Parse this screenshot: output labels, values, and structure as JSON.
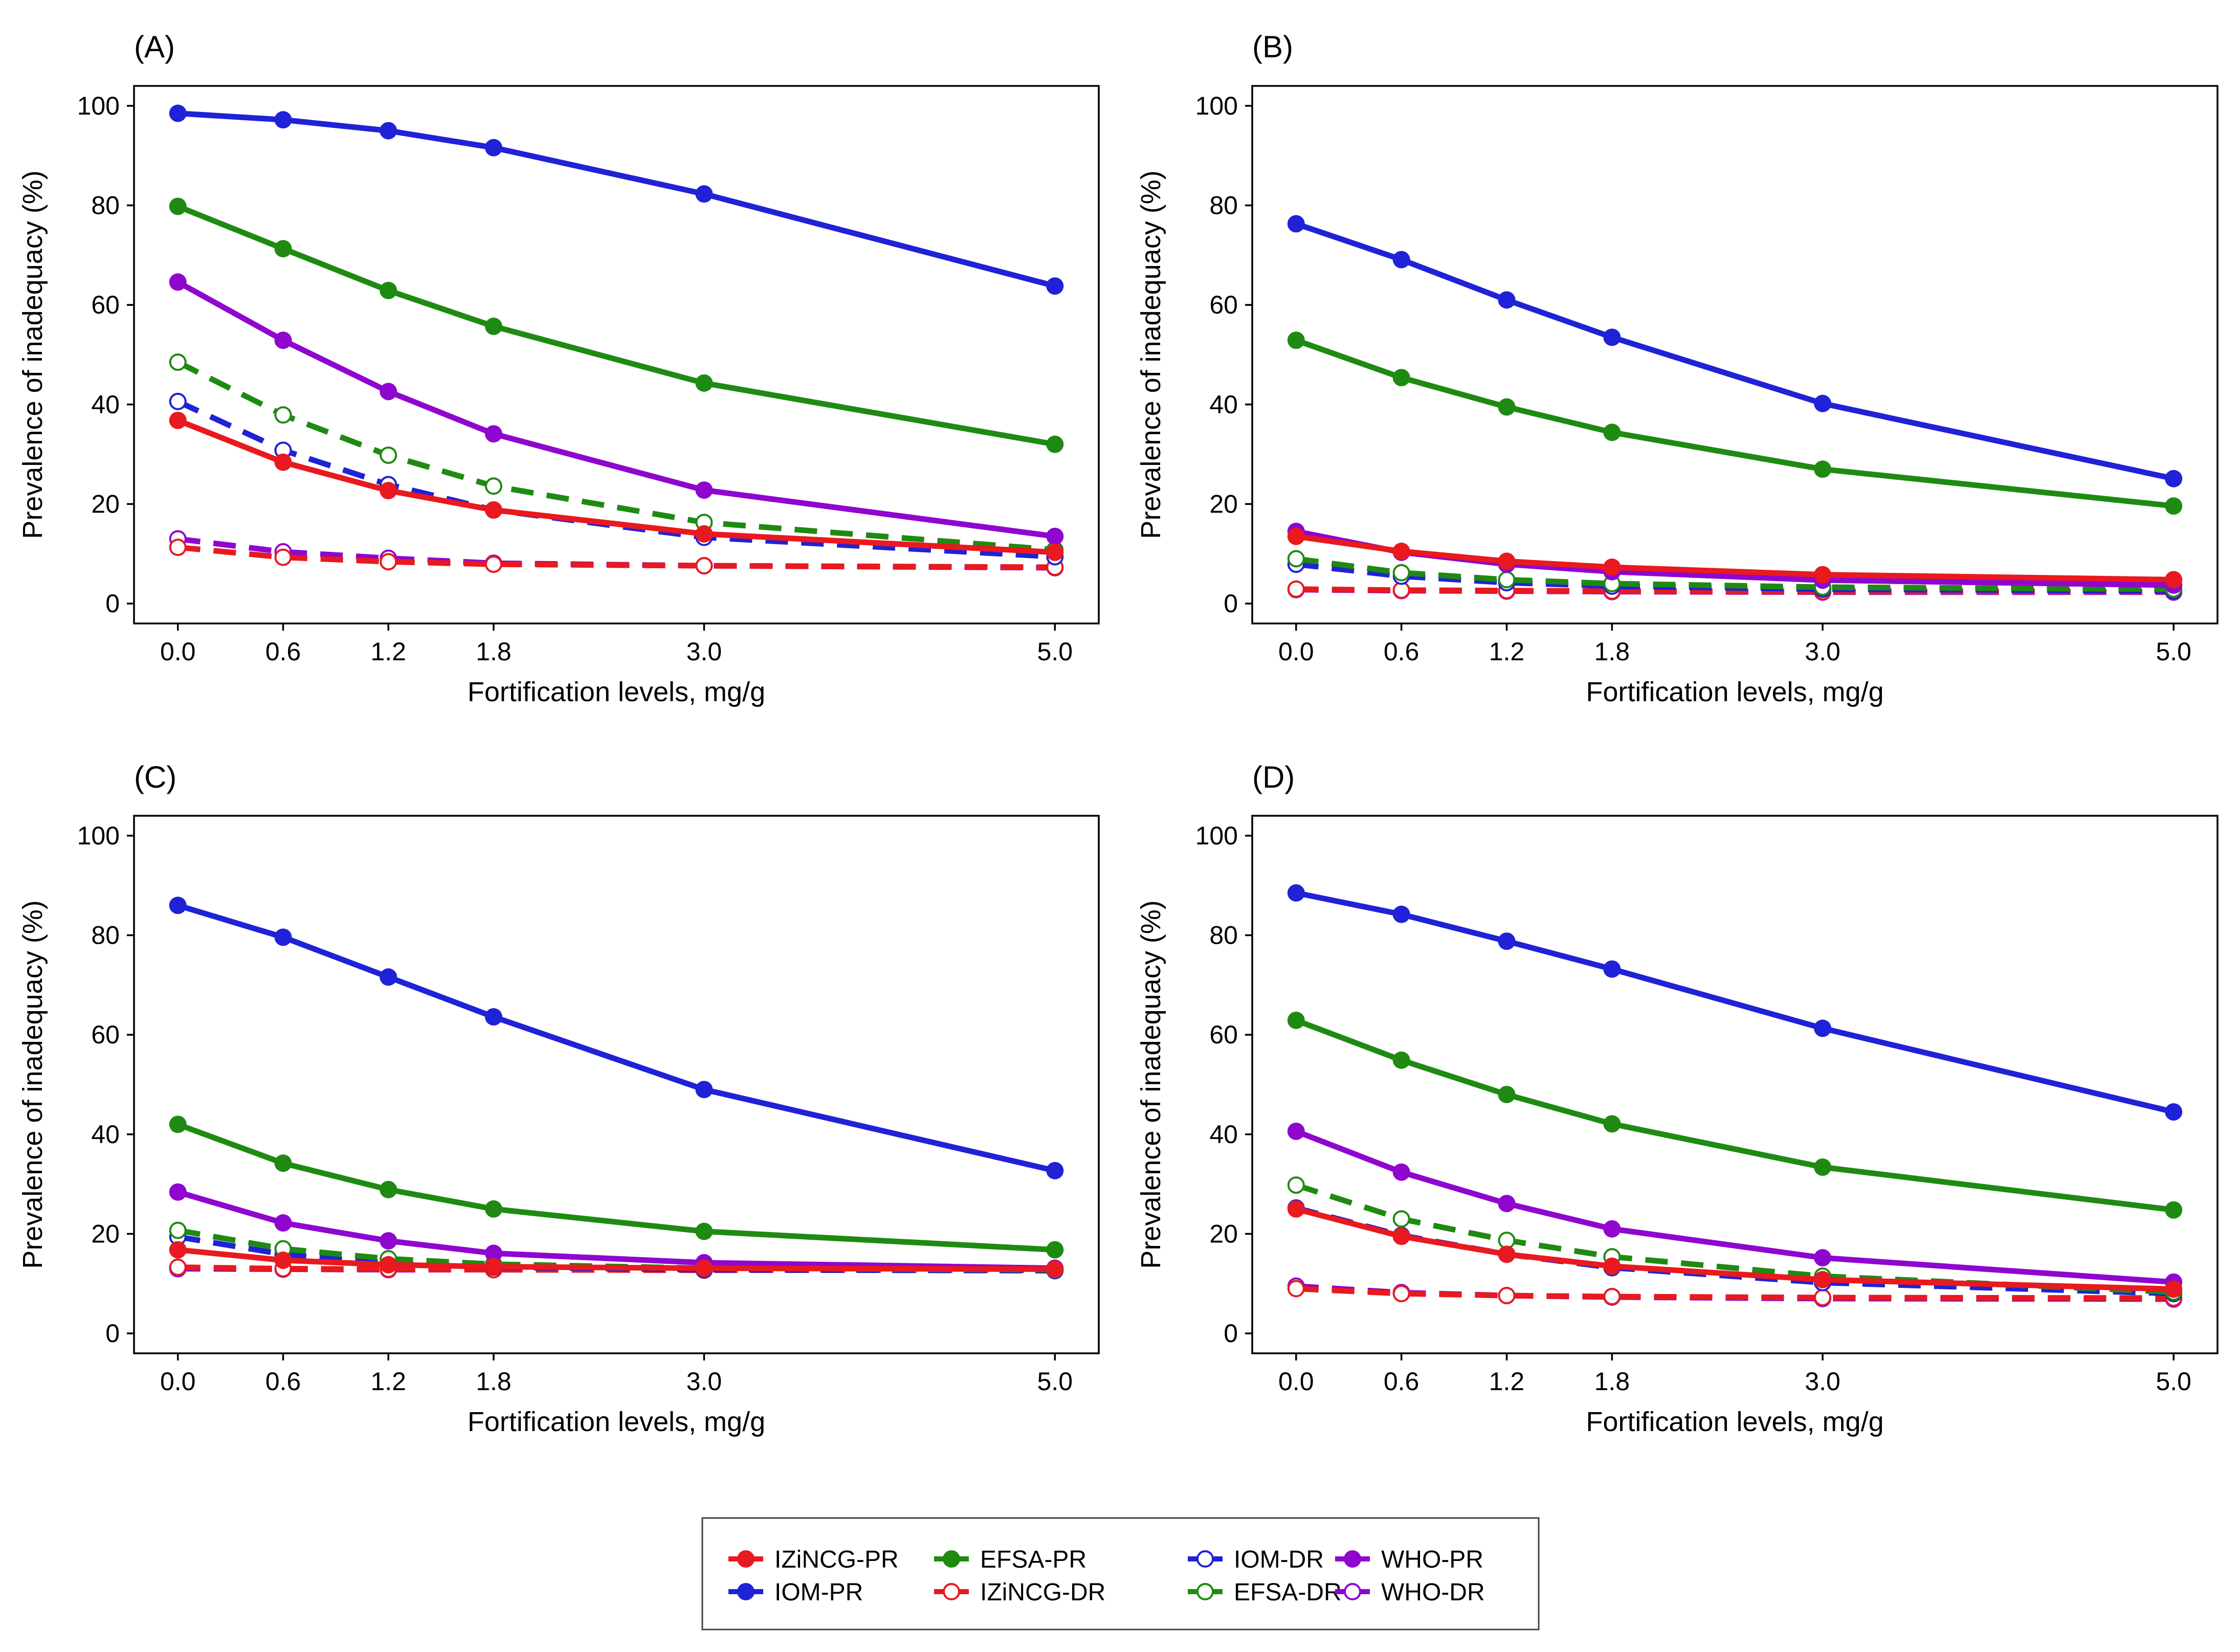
{
  "legend": {
    "columns": [
      [
        "IZiNCG-PR",
        "IOM-PR"
      ],
      [
        "EFSA-PR",
        "IZiNCG-DR"
      ],
      [
        "IOM-DR",
        "EFSA-DR"
      ],
      [
        "WHO-PR",
        "WHO-DR"
      ]
    ]
  },
  "colors": {
    "IZiNCG": "#e8191f",
    "IOM": "#1f22d6",
    "EFSA": "#1f8a12",
    "WHO": "#8f06cf",
    "frame": "#000000",
    "background": "#ffffff"
  },
  "chart_data": [
    {
      "type": "line",
      "title": "(A)",
      "xlabel": "Fortification levels, mg/g",
      "ylabel": "Prevalence of inadequacy (%)",
      "x": [
        0.0,
        0.6,
        1.2,
        1.8,
        3.0,
        5.0
      ],
      "x_tick_labels": [
        "0.0",
        "0.6",
        "1.2",
        "1.8",
        "3.0",
        "5.0"
      ],
      "y_ticks": [
        0,
        20,
        40,
        60,
        80,
        100
      ],
      "y_tick_labels": [
        "0",
        "20",
        "40",
        "60",
        "80",
        "100"
      ],
      "xlim": [
        -0.25,
        5.25
      ],
      "ylim": [
        -4,
        104
      ],
      "series": [
        {
          "name": "IOM-PR",
          "group": "IOM",
          "style": "PR",
          "values": [
            98.5,
            97.2,
            95.0,
            91.6,
            82.3,
            63.8
          ]
        },
        {
          "name": "EFSA-PR",
          "group": "EFSA",
          "style": "PR",
          "values": [
            79.8,
            71.3,
            62.9,
            55.7,
            44.3,
            32.0
          ]
        },
        {
          "name": "WHO-PR",
          "group": "WHO",
          "style": "PR",
          "values": [
            64.6,
            52.9,
            42.6,
            34.1,
            22.8,
            13.5
          ]
        },
        {
          "name": "EFSA-DR",
          "group": "EFSA",
          "style": "DR",
          "values": [
            48.5,
            37.9,
            29.8,
            23.6,
            16.3,
            10.8
          ]
        },
        {
          "name": "IOM-DR",
          "group": "IOM",
          "style": "DR",
          "values": [
            40.6,
            30.8,
            23.9,
            18.8,
            13.3,
            9.4
          ]
        },
        {
          "name": "IZiNCG-PR",
          "group": "IZiNCG",
          "style": "PR",
          "values": [
            36.8,
            28.4,
            22.7,
            18.8,
            14.0,
            10.3
          ]
        },
        {
          "name": "WHO-DR",
          "group": "WHO",
          "style": "DR",
          "values": [
            13.0,
            10.4,
            9.1,
            8.1,
            7.6,
            7.2
          ]
        },
        {
          "name": "IZiNCG-DR",
          "group": "IZiNCG",
          "style": "DR",
          "values": [
            11.3,
            9.3,
            8.4,
            7.9,
            7.6,
            7.3
          ]
        }
      ]
    },
    {
      "type": "line",
      "title": "(B)",
      "xlabel": "Fortification levels, mg/g",
      "ylabel": "Prevalence of inadequacy (%)",
      "x": [
        0.0,
        0.6,
        1.2,
        1.8,
        3.0,
        5.0
      ],
      "x_tick_labels": [
        "0.0",
        "0.6",
        "1.2",
        "1.8",
        "3.0",
        "5.0"
      ],
      "y_ticks": [
        0,
        20,
        40,
        60,
        80,
        100
      ],
      "y_tick_labels": [
        "0",
        "20",
        "40",
        "60",
        "80",
        "100"
      ],
      "xlim": [
        -0.25,
        5.25
      ],
      "ylim": [
        -4,
        104
      ],
      "series": [
        {
          "name": "IOM-PR",
          "group": "IOM",
          "style": "PR",
          "values": [
            76.3,
            69.1,
            61.0,
            53.5,
            40.2,
            25.1
          ]
        },
        {
          "name": "EFSA-PR",
          "group": "EFSA",
          "style": "PR",
          "values": [
            52.9,
            45.4,
            39.5,
            34.4,
            27.0,
            19.6
          ]
        },
        {
          "name": "WHO-PR",
          "group": "WHO",
          "style": "PR",
          "values": [
            14.5,
            10.3,
            7.9,
            6.4,
            4.7,
            3.7
          ]
        },
        {
          "name": "IZiNCG-PR",
          "group": "IZiNCG",
          "style": "PR",
          "values": [
            13.5,
            10.5,
            8.5,
            7.3,
            5.8,
            4.8
          ]
        },
        {
          "name": "EFSA-DR",
          "group": "EFSA",
          "style": "DR",
          "values": [
            9.0,
            6.2,
            4.8,
            4.0,
            3.3,
            2.9
          ]
        },
        {
          "name": "IOM-DR",
          "group": "IOM",
          "style": "DR",
          "values": [
            7.9,
            5.5,
            4.2,
            3.5,
            2.9,
            2.5
          ]
        },
        {
          "name": "WHO-DR",
          "group": "WHO",
          "style": "DR",
          "values": [
            2.8,
            2.6,
            2.5,
            2.4,
            2.3,
            2.3
          ]
        },
        {
          "name": "IZiNCG-DR",
          "group": "IZiNCG",
          "style": "DR",
          "values": [
            2.9,
            2.7,
            2.6,
            2.5,
            2.4,
            2.4
          ]
        }
      ]
    },
    {
      "type": "line",
      "title": "(C)",
      "xlabel": "Fortification levels, mg/g",
      "ylabel": "Prevalence of inadequacy (%)",
      "x": [
        0.0,
        0.6,
        1.2,
        1.8,
        3.0,
        5.0
      ],
      "x_tick_labels": [
        "0.0",
        "0.6",
        "1.2",
        "1.8",
        "3.0",
        "5.0"
      ],
      "y_ticks": [
        0,
        20,
        40,
        60,
        80,
        100
      ],
      "y_tick_labels": [
        "0",
        "20",
        "40",
        "60",
        "80",
        "100"
      ],
      "xlim": [
        -0.25,
        5.25
      ],
      "ylim": [
        -4,
        104
      ],
      "series": [
        {
          "name": "IOM-PR",
          "group": "IOM",
          "style": "PR",
          "values": [
            86.0,
            79.6,
            71.6,
            63.6,
            49.0,
            32.7
          ]
        },
        {
          "name": "EFSA-PR",
          "group": "EFSA",
          "style": "PR",
          "values": [
            42.0,
            34.2,
            28.9,
            25.0,
            20.5,
            16.8
          ]
        },
        {
          "name": "WHO-PR",
          "group": "WHO",
          "style": "PR",
          "values": [
            28.4,
            22.2,
            18.6,
            16.1,
            14.2,
            13.1
          ]
        },
        {
          "name": "EFSA-DR",
          "group": "EFSA",
          "style": "DR",
          "values": [
            20.7,
            17.0,
            15.0,
            13.9,
            13.1,
            12.8
          ]
        },
        {
          "name": "IOM-DR",
          "group": "IOM",
          "style": "DR",
          "values": [
            19.4,
            15.9,
            14.1,
            13.3,
            12.8,
            12.6
          ]
        },
        {
          "name": "IZiNCG-PR",
          "group": "IZiNCG",
          "style": "PR",
          "values": [
            16.8,
            14.7,
            13.8,
            13.4,
            13.1,
            12.9
          ]
        },
        {
          "name": "WHO-DR",
          "group": "WHO",
          "style": "DR",
          "values": [
            13.0,
            12.9,
            12.8,
            12.8,
            12.7,
            12.7
          ]
        },
        {
          "name": "IZiNCG-DR",
          "group": "IZiNCG",
          "style": "DR",
          "values": [
            13.3,
            13.0,
            12.9,
            12.8,
            12.7,
            12.7
          ]
        }
      ]
    },
    {
      "type": "line",
      "title": "(D)",
      "xlabel": "Fortification levels, mg/g",
      "ylabel": "Prevalence of inadequacy (%)",
      "x": [
        0.0,
        0.6,
        1.2,
        1.8,
        3.0,
        5.0
      ],
      "x_tick_labels": [
        "0.0",
        "0.6",
        "1.2",
        "1.8",
        "3.0",
        "5.0"
      ],
      "y_ticks": [
        0,
        20,
        40,
        60,
        80,
        100
      ],
      "y_tick_labels": [
        "0",
        "20",
        "40",
        "60",
        "80",
        "100"
      ],
      "xlim": [
        -0.25,
        5.25
      ],
      "ylim": [
        -4,
        104
      ],
      "series": [
        {
          "name": "IOM-PR",
          "group": "IOM",
          "style": "PR",
          "values": [
            88.5,
            84.2,
            78.8,
            73.2,
            61.3,
            44.5
          ]
        },
        {
          "name": "EFSA-PR",
          "group": "EFSA",
          "style": "PR",
          "values": [
            62.9,
            54.9,
            48.0,
            42.1,
            33.4,
            24.8
          ]
        },
        {
          "name": "WHO-PR",
          "group": "WHO",
          "style": "PR",
          "values": [
            40.6,
            32.4,
            26.1,
            21.0,
            15.2,
            10.3
          ]
        },
        {
          "name": "EFSA-DR",
          "group": "EFSA",
          "style": "DR",
          "values": [
            29.8,
            23.0,
            18.7,
            15.4,
            11.5,
            8.3
          ]
        },
        {
          "name": "IOM-DR",
          "group": "IOM",
          "style": "DR",
          "values": [
            25.2,
            19.7,
            15.9,
            13.2,
            10.2,
            8.0
          ]
        },
        {
          "name": "IZiNCG-PR",
          "group": "IZiNCG",
          "style": "PR",
          "values": [
            25.0,
            19.5,
            15.9,
            13.5,
            10.8,
            8.9
          ]
        },
        {
          "name": "WHO-DR",
          "group": "WHO",
          "style": "DR",
          "values": [
            9.5,
            8.2,
            7.6,
            7.3,
            7.0,
            6.9
          ]
        },
        {
          "name": "IZiNCG-DR",
          "group": "IZiNCG",
          "style": "DR",
          "values": [
            9.0,
            8.0,
            7.6,
            7.4,
            7.2,
            7.1
          ]
        }
      ]
    }
  ]
}
